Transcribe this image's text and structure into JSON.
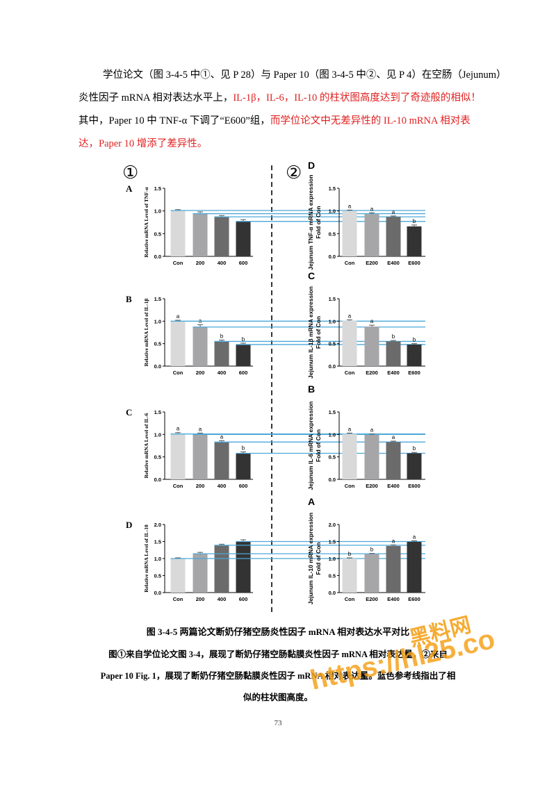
{
  "paragraph": [
    [
      {
        "text": "学位论文（图 3-4-5 中①、见 P 28）与 Paper 10（图 3-4-5 中②、见 P 4）在空肠（Jejunum）",
        "color": "#000000"
      }
    ],
    [
      {
        "text": "炎性因子 mRNA 相对表达水平上，",
        "color": "#000000"
      },
      {
        "text": "IL-1β，IL-6，IL-10 的柱状图高度达到了奇迹般的相似！",
        "color": "#e02020"
      }
    ],
    [
      {
        "text": "其中，Paper 10 中 TNF-α 下调了“E600”组，",
        "color": "#000000"
      },
      {
        "text": "而学位论文中无差异性的 IL-10 mRNA 相对表",
        "color": "#e02020"
      }
    ],
    [
      {
        "text": "达，Paper 10 增添了差异性。",
        "color": "#e02020"
      }
    ]
  ],
  "figure": {
    "left_label": "①",
    "right_label": "②",
    "reference_color": "#4aa8d8",
    "charts": [
      {
        "type": "bar",
        "panel": "A",
        "ylabel": [
          "Relative mRNA Level of TNF-α"
        ],
        "categories": [
          "Con",
          "200",
          "400",
          "600"
        ],
        "values": [
          1.01,
          0.94,
          0.87,
          0.77
        ],
        "errors": [
          0.02,
          0.04,
          0.03,
          0.04
        ],
        "colors": [
          "#d9d9d9",
          "#a6a6a9",
          "#6b6b6b",
          "#333333"
        ],
        "ylim": [
          0,
          1.5
        ],
        "yticks": [
          {
            "value": 0,
            "label": "0.0"
          },
          {
            "value": 0.5,
            "label": "0.5"
          },
          {
            "value": 1,
            "label": "1.0"
          },
          {
            "value": 1.5,
            "label": "1.5"
          }
        ]
      },
      {
        "type": "bar",
        "panel": "B",
        "ylabel": [
          "Relative mRNA Level of IL-1β"
        ],
        "categories": [
          "Con",
          "200",
          "400",
          "600"
        ],
        "values": [
          1.0,
          0.87,
          0.55,
          0.48
        ],
        "errors": [
          0.02,
          0.05,
          0.03,
          0.03
        ],
        "sig": [
          "a",
          "a",
          "b",
          "b"
        ],
        "colors": [
          "#d9d9d9",
          "#a6a6a9",
          "#6b6b6b",
          "#333333"
        ],
        "ylim": [
          0,
          1.5
        ],
        "yticks": [
          {
            "value": 0,
            "label": "0.0"
          },
          {
            "value": 0.5,
            "label": "0.5"
          },
          {
            "value": 1,
            "label": "1.0"
          },
          {
            "value": 1.5,
            "label": "1.5"
          }
        ]
      },
      {
        "type": "bar",
        "panel": "C",
        "ylabel": [
          "Relative mRNA Level of IL-6"
        ],
        "categories": [
          "Con",
          "200",
          "400",
          "600"
        ],
        "values": [
          1.01,
          1.0,
          0.83,
          0.58
        ],
        "errors": [
          0.03,
          0.03,
          0.03,
          0.03
        ],
        "sig": [
          "a",
          "a",
          "a",
          "b"
        ],
        "colors": [
          "#d9d9d9",
          "#a6a6a9",
          "#6b6b6b",
          "#333333"
        ],
        "ylim": [
          0,
          1.5
        ],
        "yticks": [
          {
            "value": 0,
            "label": "0.0"
          },
          {
            "value": 0.5,
            "label": "0.5"
          },
          {
            "value": 1,
            "label": "1.0"
          },
          {
            "value": 1.5,
            "label": "1.5"
          }
        ]
      },
      {
        "type": "bar",
        "panel": "D",
        "ylabel": [
          "Relative mRNA Level of IL-10"
        ],
        "categories": [
          "Con",
          "200",
          "400",
          "600"
        ],
        "values": [
          1.0,
          1.14,
          1.39,
          1.5
        ],
        "errors": [
          0.02,
          0.04,
          0.03,
          0.05
        ],
        "colors": [
          "#d9d9d9",
          "#a6a6a9",
          "#6b6b6b",
          "#333333"
        ],
        "ylim": [
          0,
          2
        ],
        "yticks": [
          {
            "value": 0,
            "label": "0.0"
          },
          {
            "value": 0.5,
            "label": "0.5"
          },
          {
            "value": 1,
            "label": "1.0"
          },
          {
            "value": 1.5,
            "label": "1.5"
          },
          {
            "value": 2,
            "label": "2.0"
          }
        ]
      },
      {
        "type": "bar",
        "panel": "D",
        "ylabel": [
          "Jejunum TNF-α mRNA expression",
          "Fold of Con"
        ],
        "categories": [
          "Con",
          "E200",
          "E400",
          "E600"
        ],
        "values": [
          1.0,
          0.93,
          0.87,
          0.66
        ],
        "errors": [
          0.02,
          0.03,
          0.02,
          0.03
        ],
        "sig": [
          "a",
          "a",
          "a",
          "b"
        ],
        "colors": [
          "#d9d9d9",
          "#a6a6a9",
          "#6b6b6b",
          "#333333"
        ],
        "ylim": [
          0,
          1.5
        ],
        "yticks": [
          {
            "value": 0,
            "label": "0.0"
          },
          {
            "value": 0.5,
            "label": "0.5"
          },
          {
            "value": 1,
            "label": "1.0"
          },
          {
            "value": 1.5,
            "label": "1.5"
          }
        ]
      },
      {
        "type": "bar",
        "panel": "C",
        "ylabel": [
          "Jejunum IL-1β mRNA expression",
          "Fold of Con"
        ],
        "categories": [
          "Con",
          "E200",
          "E400",
          "E600"
        ],
        "values": [
          1.01,
          0.88,
          0.55,
          0.48
        ],
        "errors": [
          0.02,
          0.03,
          0.02,
          0.02
        ],
        "sig": [
          "a",
          "a",
          "b",
          "b"
        ],
        "colors": [
          "#d9d9d9",
          "#a6a6a9",
          "#6b6b6b",
          "#333333"
        ],
        "ylim": [
          0,
          1.5
        ],
        "yticks": [
          {
            "value": 0,
            "label": "0.0"
          },
          {
            "value": 0.5,
            "label": "0.5"
          },
          {
            "value": 1,
            "label": "1.0"
          },
          {
            "value": 1.5,
            "label": "1.5"
          }
        ]
      },
      {
        "type": "bar",
        "panel": "B",
        "ylabel": [
          "Jejunum IL-6 mRNA expression",
          "Fold of Con"
        ],
        "categories": [
          "Con",
          "E200",
          "E400",
          "E600"
        ],
        "values": [
          1.01,
          0.99,
          0.83,
          0.58
        ],
        "errors": [
          0.02,
          0.02,
          0.02,
          0.02
        ],
        "sig": [
          "a",
          "a",
          "a",
          "b"
        ],
        "colors": [
          "#d9d9d9",
          "#a6a6a9",
          "#6b6b6b",
          "#333333"
        ],
        "ylim": [
          0,
          1.5
        ],
        "yticks": [
          {
            "value": 0,
            "label": "0.0"
          },
          {
            "value": 0.5,
            "label": "0.5"
          },
          {
            "value": 1,
            "label": "1.0"
          },
          {
            "value": 1.5,
            "label": "1.5"
          }
        ]
      },
      {
        "type": "bar",
        "panel": "A",
        "ylabel": [
          "Jejunum IL-10 mRNA expression",
          "Fold of Con"
        ],
        "categories": [
          "Con",
          "E200",
          "E400",
          "E600"
        ],
        "values": [
          1.0,
          1.13,
          1.37,
          1.49
        ],
        "errors": [
          0.02,
          0.02,
          0.03,
          0.03
        ],
        "sig": [
          "b",
          "b",
          "a",
          "a"
        ],
        "colors": [
          "#d9d9d9",
          "#a6a6a9",
          "#6b6b6b",
          "#333333"
        ],
        "ylim": [
          0,
          2
        ],
        "yticks": [
          {
            "value": 0,
            "label": "0.0"
          },
          {
            "value": 0.5,
            "label": "0.5"
          },
          {
            "value": 1,
            "label": "1.0"
          },
          {
            "value": 1.5,
            "label": "1.5"
          },
          {
            "value": 2,
            "label": "2.0"
          }
        ]
      }
    ]
  },
  "caption": {
    "title": "图 3-4-5  两篇论文断奶仔猪空肠炎性因子 mRNA 相对表达水平对比",
    "note": [
      "图①来自学位论文图 3-4，展现了断奶仔猪空肠黏膜炎性因子 mRNA 相对表达量，②来自",
      "Paper 10 Fig. 1，展现了断奶仔猪空肠黏膜炎性因子 mRNA 相对表达量。蓝色参考线指出了相",
      "似的柱状图高度。"
    ]
  },
  "watermark": [
    "黑料网",
    "https://hl25.co"
  ],
  "page_number": "73"
}
